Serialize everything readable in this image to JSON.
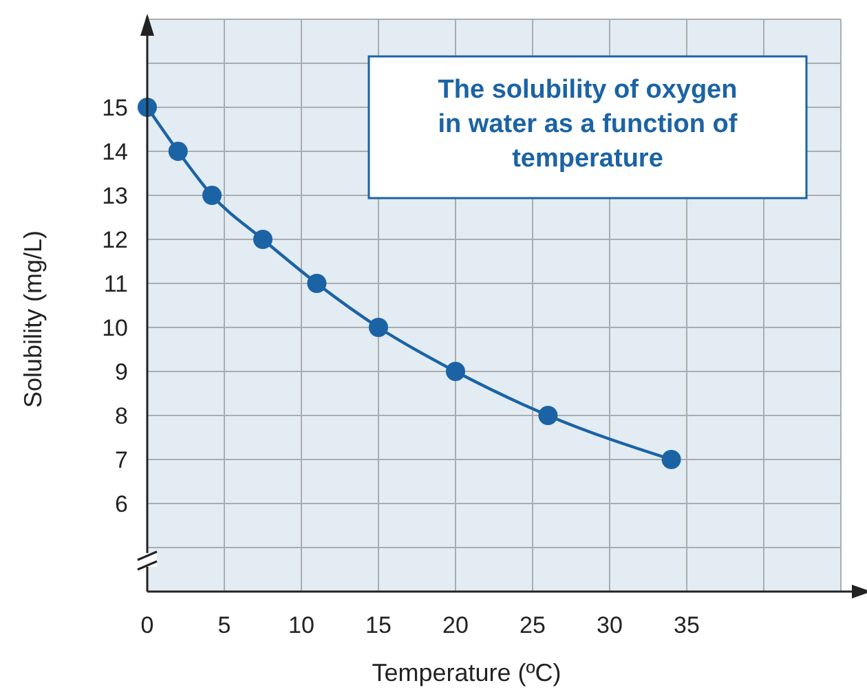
{
  "chart_data": {
    "type": "line",
    "title": "The solubility of oxygen in water as a function of temperature",
    "xlabel": "Temperature (ºC)",
    "ylabel": "Solubility (mg/L)",
    "x": [
      0,
      2,
      4.2,
      7.5,
      11,
      15,
      20,
      26,
      34
    ],
    "series": [
      {
        "color": "#1b63a5",
        "values": [
          15,
          14,
          13,
          12,
          11,
          10,
          9,
          8,
          7
        ]
      }
    ],
    "xlim": [
      0,
      45
    ],
    "xticks": [
      0,
      5,
      10,
      15,
      20,
      25,
      30,
      35,
      {
        "value": 40,
        "label": null
      }
    ],
    "ylim": [
      4,
      17
    ],
    "yticks": [
      {
        "value": 5,
        "label": null
      },
      6,
      7,
      8,
      9,
      10,
      11,
      12,
      13,
      14,
      15,
      {
        "value": 16,
        "label": null
      }
    ],
    "grid": true,
    "marker": "circle",
    "line_style": "solid"
  }
}
